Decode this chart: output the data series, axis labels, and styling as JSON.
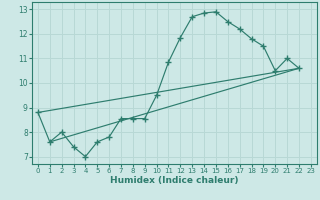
{
  "xlabel": "Humidex (Indice chaleur)",
  "ylabel": "",
  "bg_color": "#cde8e6",
  "grid_color": "#b8d8d5",
  "line_color": "#2e7d6e",
  "xlim": [
    -0.5,
    23.5
  ],
  "ylim": [
    6.7,
    13.3
  ],
  "xticks": [
    0,
    1,
    2,
    3,
    4,
    5,
    6,
    7,
    8,
    9,
    10,
    11,
    12,
    13,
    14,
    15,
    16,
    17,
    18,
    19,
    20,
    21,
    22,
    23
  ],
  "yticks": [
    7,
    8,
    9,
    10,
    11,
    12,
    13
  ],
  "curve_x": [
    0,
    1,
    2,
    3,
    4,
    5,
    6,
    7,
    8,
    9,
    10,
    11,
    12,
    13,
    14,
    15,
    16,
    17,
    18,
    19,
    20,
    21,
    22
  ],
  "curve_y": [
    8.8,
    7.6,
    8.0,
    7.4,
    7.0,
    7.6,
    7.8,
    8.55,
    8.55,
    8.55,
    9.5,
    10.85,
    11.85,
    12.7,
    12.85,
    12.9,
    12.5,
    12.2,
    11.8,
    11.5,
    10.5,
    11.0,
    10.6
  ],
  "trend1_x": [
    1,
    22
  ],
  "trend1_y": [
    7.6,
    10.6
  ],
  "trend2_x": [
    0,
    22
  ],
  "trend2_y": [
    8.8,
    10.6
  ]
}
